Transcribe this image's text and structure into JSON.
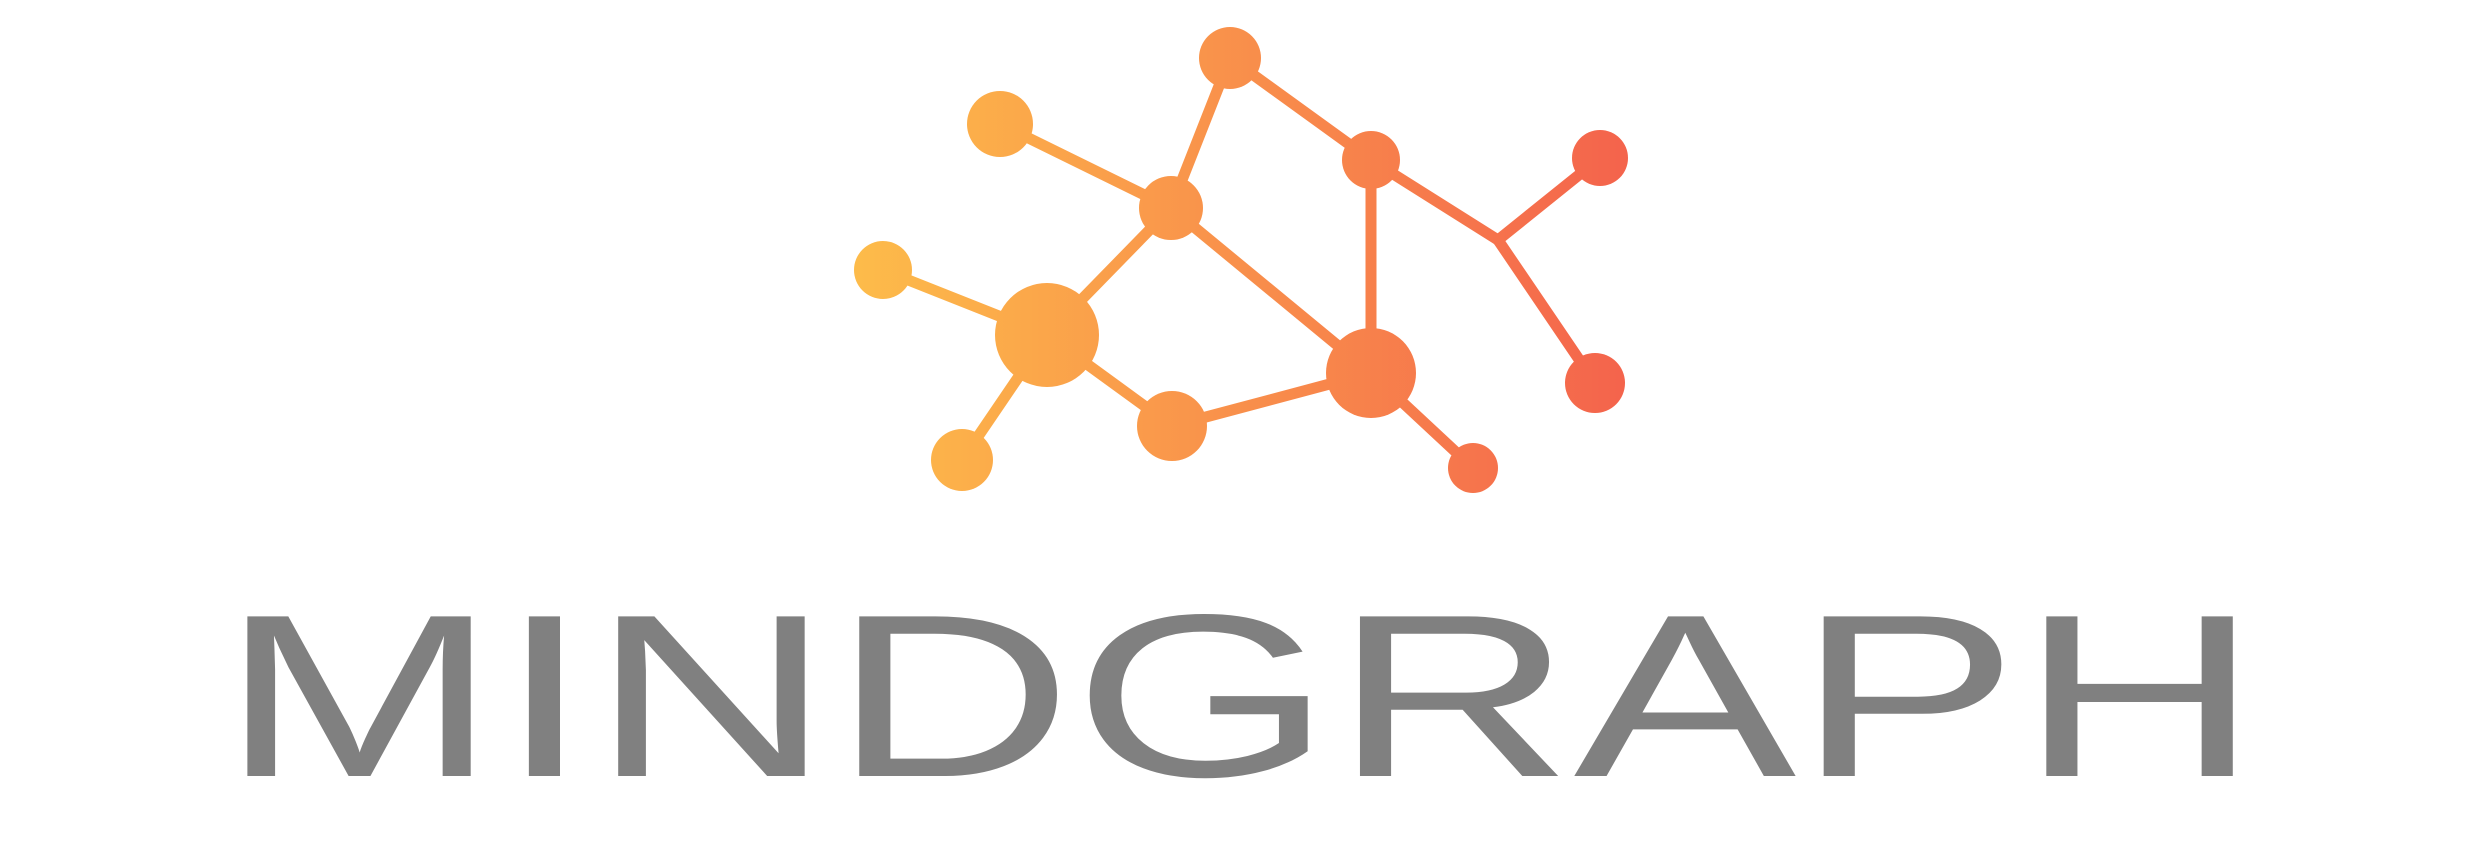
{
  "brand": {
    "name": "MINDGRAPH",
    "wordmark_color": "#808080",
    "gradient_start": "#FDBB4A",
    "gradient_end": "#F4634C"
  }
}
